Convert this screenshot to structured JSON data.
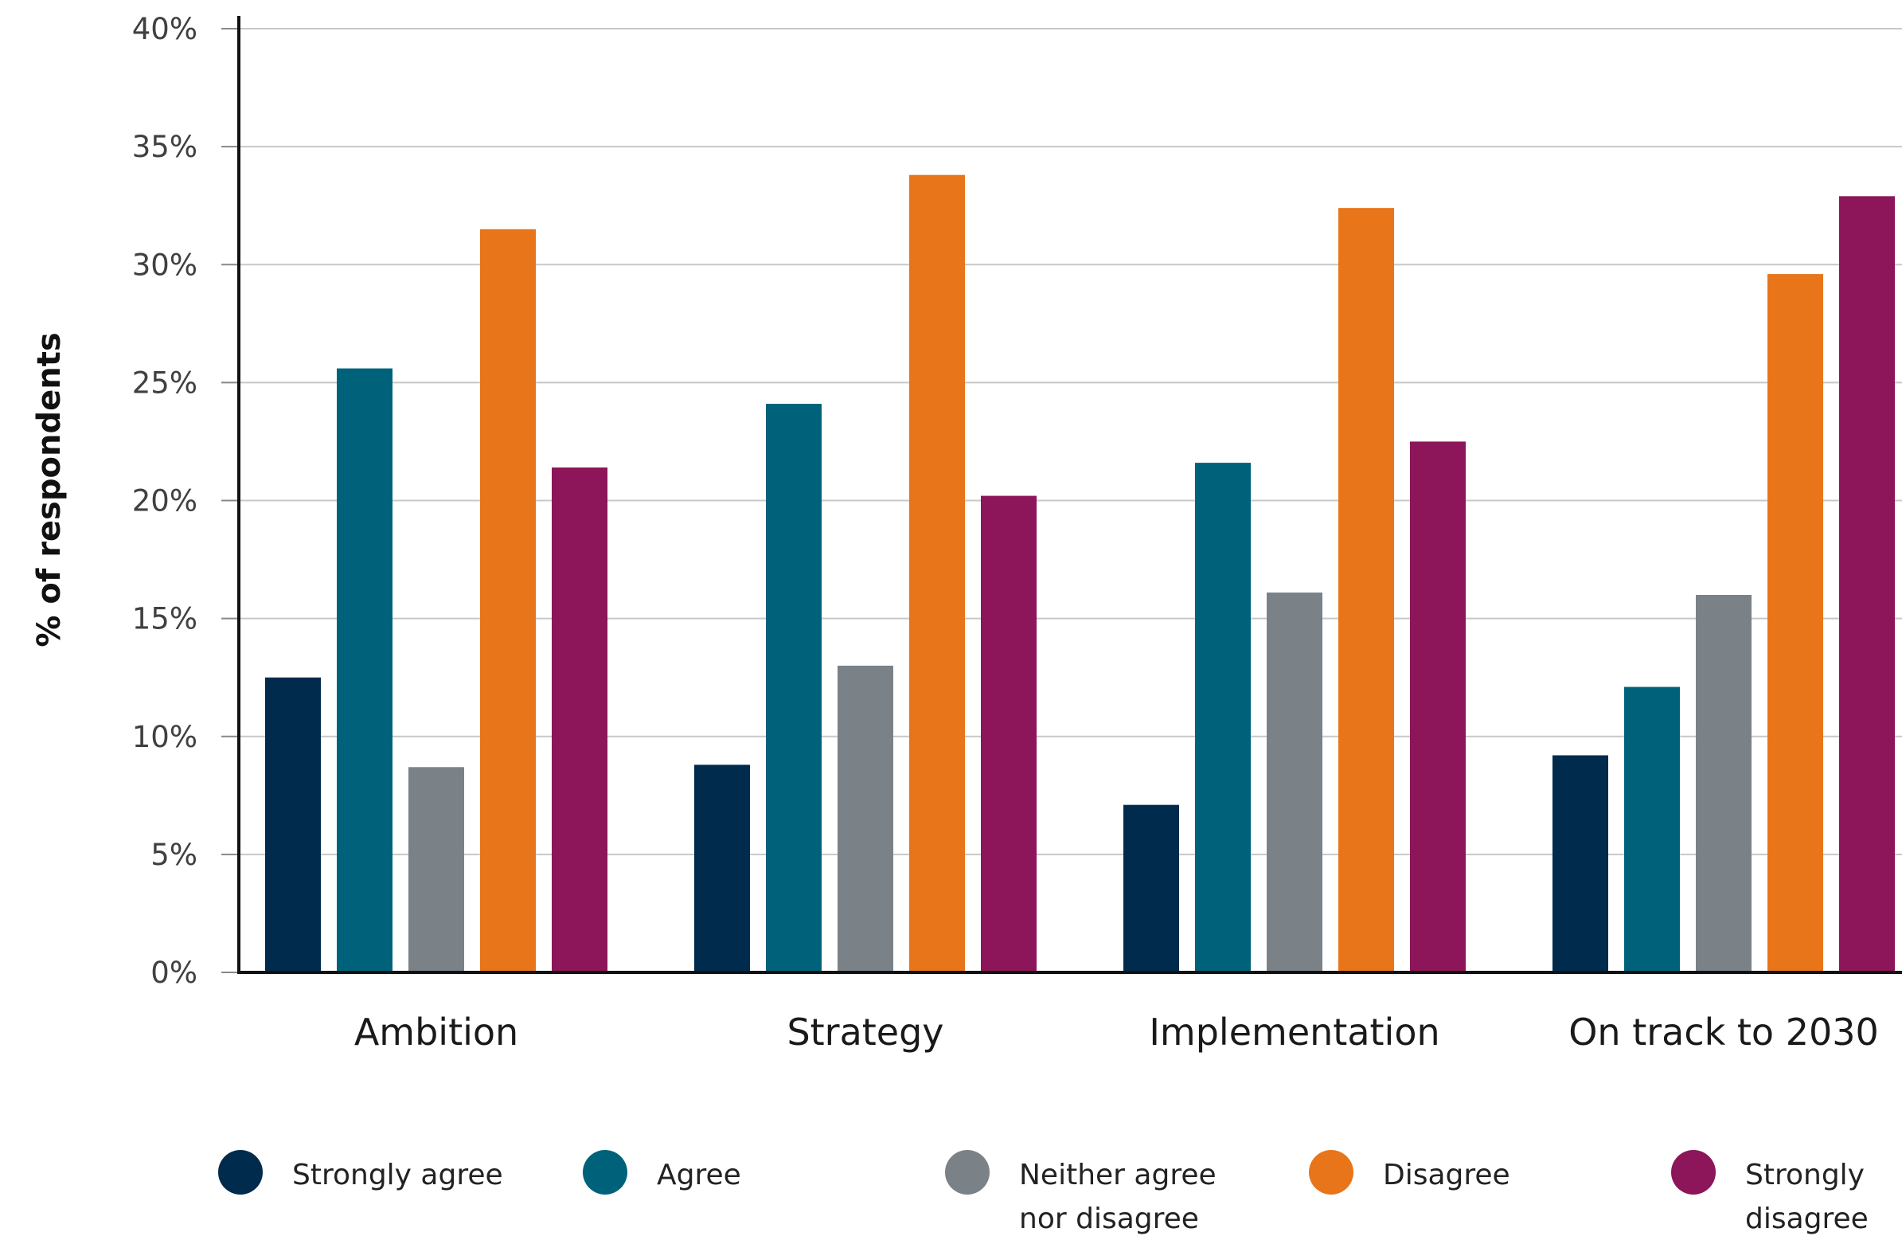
{
  "chart_data": {
    "type": "bar",
    "ylabel": "% of respondents",
    "xlabel": "",
    "ylim": [
      0,
      40
    ],
    "yticks": [
      "0%",
      "5%",
      "10%",
      "15%",
      "20%",
      "25%",
      "30%",
      "35%",
      "40%"
    ],
    "grid": true,
    "legend_position": "bottom",
    "categories": [
      "Ambition",
      "Strategy",
      "Implementation",
      "On track to 2030"
    ],
    "series": [
      {
        "name": "Strongly agree",
        "color": "#002b4d",
        "values": [
          12.5,
          8.8,
          7.1,
          9.2
        ]
      },
      {
        "name": "Agree",
        "color": "#00627a",
        "values": [
          25.6,
          24.1,
          21.6,
          12.1
        ]
      },
      {
        "name": "Neither agree nor disagree",
        "color": "#7a8288",
        "values": [
          8.7,
          13.0,
          16.1,
          16.0
        ]
      },
      {
        "name": "Disagree",
        "color": "#e8751a",
        "values": [
          31.5,
          33.8,
          32.4,
          29.6
        ]
      },
      {
        "name": "Strongly disagree",
        "color": "#8c1659",
        "values": [
          21.4,
          20.2,
          22.5,
          32.9
        ]
      }
    ]
  }
}
